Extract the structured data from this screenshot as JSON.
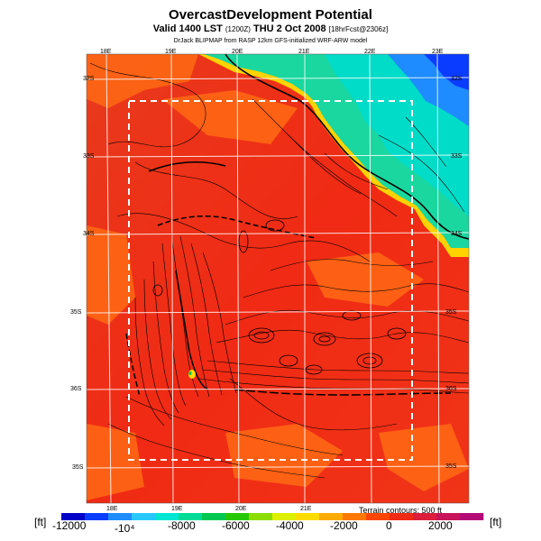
{
  "header": {
    "title": "OvercastDevelopment Potential",
    "valid_main": "Valid 1400 LST",
    "valid_time_code": "(1200Z)",
    "valid_date": "THU 2 Oct 2008",
    "forecast_info": "[18hrFcst@2306z]",
    "credit": "DrJack BLIPMAP from RASP 12km GFS-initialized WRF-ARW model"
  },
  "map": {
    "lon_labels_top": [
      "18E",
      "19E",
      "20E",
      "21E",
      "22E",
      "23E"
    ],
    "lon_labels_bottom": [
      "18E",
      "19E",
      "20E",
      "21E"
    ],
    "lat_labels_left": [
      "32S",
      "33S",
      "34S",
      "35S",
      "36S",
      "35S"
    ],
    "lat_labels_right": [
      "32S",
      "33S",
      "34S",
      "35S",
      "36S",
      "35S"
    ],
    "terrain_contours_note": "Terrain contours: 500 ft"
  },
  "colorbar": {
    "unit_left": "[ft]",
    "unit_right": "[ft]",
    "tick_labels": [
      "-12000",
      "-10⁴",
      "-8000",
      "-6000",
      "-4000",
      "-2000",
      "0",
      "2000"
    ],
    "colors": [
      "#0000c8",
      "#0a3cff",
      "#1e8cff",
      "#28c8ff",
      "#00e6d2",
      "#00dc96",
      "#00c850",
      "#28c800",
      "#8cdc00",
      "#dcf000",
      "#ffdc00",
      "#ffaa00",
      "#ff7800",
      "#ff4600",
      "#f02a14",
      "#dc1e3c",
      "#c8145a",
      "#b40a78"
    ]
  },
  "colors": {
    "map_background": "#f02a14",
    "ocean_high": "#19d79f",
    "ocean_deep": "#1e8cff"
  }
}
